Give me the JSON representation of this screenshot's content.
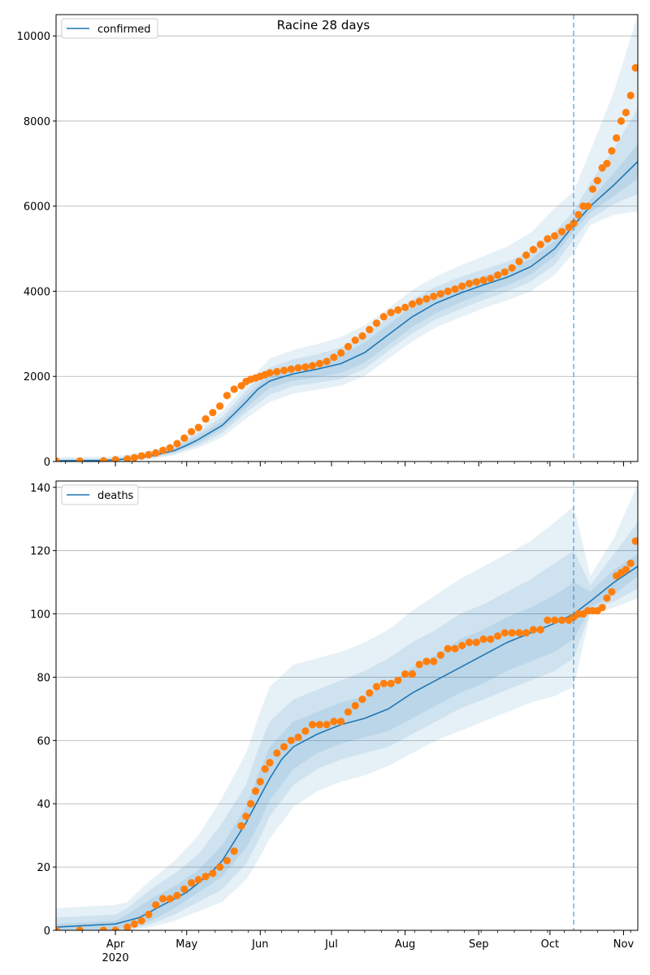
{
  "figure": {
    "title": "Racine 28 days"
  },
  "colors": {
    "line": "#1f77b4",
    "band": "#1f77b4",
    "points": "#ff7f0e",
    "grid": "#b0b0b0",
    "vline": "#1f77b4"
  },
  "chart_data": [
    {
      "type": "line",
      "name": "confirmed",
      "legend": "top-left",
      "grid": "horizontal",
      "xlim": [
        0,
        245
      ],
      "ylim": [
        0,
        10500
      ],
      "yticks": [
        0,
        2000,
        4000,
        6000,
        8000,
        10000
      ],
      "xticks": [
        {
          "x": 25,
          "label": "Apr",
          "sublabel": "2020"
        },
        {
          "x": 55,
          "label": "May"
        },
        {
          "x": 86,
          "label": "Jun"
        },
        {
          "x": 116,
          "label": "Jul"
        },
        {
          "x": 147,
          "label": "Aug"
        },
        {
          "x": 178,
          "label": "Sep"
        },
        {
          "x": 208,
          "label": "Oct"
        },
        {
          "x": 239,
          "label": "Nov"
        }
      ],
      "forecast_start_x": 218,
      "line": {
        "x": [
          0,
          20,
          30,
          40,
          50,
          55,
          60,
          70,
          75,
          80,
          85,
          90,
          95,
          100,
          110,
          120,
          130,
          140,
          150,
          160,
          170,
          180,
          190,
          200,
          210,
          218,
          225,
          235,
          245
        ],
        "y": [
          20,
          25,
          60,
          130,
          260,
          380,
          520,
          850,
          1120,
          1400,
          1700,
          1890,
          1980,
          2060,
          2170,
          2300,
          2560,
          2980,
          3400,
          3720,
          3950,
          4150,
          4330,
          4580,
          5000,
          5550,
          6000,
          6500,
          7050
        ]
      },
      "bands": [
        {
          "level": "inner",
          "x": [
            0,
            20,
            30,
            40,
            50,
            60,
            70,
            80,
            90,
            100,
            110,
            120,
            130,
            140,
            150,
            160,
            170,
            180,
            190,
            200,
            210,
            218,
            225,
            235,
            245
          ],
          "lower": [
            0,
            5,
            40,
            100,
            220,
            440,
            760,
            1260,
            1730,
            1900,
            1980,
            2080,
            2330,
            2740,
            3160,
            3490,
            3730,
            3950,
            4140,
            4400,
            4820,
            5420,
            5850,
            6240,
            6650
          ],
          "upper": [
            40,
            50,
            90,
            170,
            310,
            610,
            950,
            1540,
            2050,
            2230,
            2350,
            2510,
            2790,
            3220,
            3640,
            3950,
            4170,
            4350,
            4520,
            4760,
            5180,
            5680,
            6150,
            6780,
            7470
          ]
        },
        {
          "level": "middle",
          "x": [
            0,
            20,
            30,
            40,
            50,
            60,
            70,
            80,
            90,
            100,
            110,
            120,
            130,
            140,
            150,
            160,
            170,
            180,
            190,
            200,
            210,
            218,
            225,
            235,
            245
          ],
          "lower": [
            0,
            0,
            25,
            80,
            190,
            380,
            670,
            1150,
            1570,
            1770,
            1850,
            1940,
            2180,
            2600,
            3010,
            3340,
            3580,
            3800,
            3990,
            4230,
            4620,
            5220,
            5700,
            6050,
            6280
          ],
          "upper": [
            60,
            70,
            110,
            200,
            350,
            680,
            1050,
            1660,
            2210,
            2400,
            2520,
            2680,
            2970,
            3380,
            3800,
            4110,
            4330,
            4510,
            4690,
            4950,
            5400,
            5880,
            6550,
            7350,
            8300
          ]
        },
        {
          "level": "outer",
          "x": [
            0,
            20,
            30,
            40,
            50,
            60,
            70,
            80,
            90,
            100,
            110,
            120,
            130,
            140,
            150,
            160,
            170,
            180,
            190,
            200,
            210,
            218,
            225,
            235,
            245
          ],
          "lower": [
            0,
            0,
            10,
            50,
            150,
            320,
            570,
            1010,
            1400,
            1600,
            1690,
            1780,
            2010,
            2420,
            2820,
            3150,
            3380,
            3600,
            3790,
            4000,
            4390,
            4900,
            5560,
            5800,
            5880
          ],
          "upper": [
            100,
            110,
            160,
            260,
            420,
            780,
            1180,
            1820,
            2420,
            2620,
            2760,
            2920,
            3200,
            3600,
            4030,
            4350,
            4600,
            4820,
            5050,
            5380,
            5950,
            6350,
            7300,
            8700,
            10500
          ]
        }
      ],
      "points": {
        "x": [
          0,
          10,
          20,
          25,
          30,
          33,
          36,
          39,
          42,
          45,
          48,
          51,
          54,
          57,
          60,
          63,
          66,
          69,
          72,
          75,
          78,
          80,
          82,
          84,
          86,
          88,
          90,
          93,
          96,
          99,
          102,
          105,
          108,
          111,
          114,
          117,
          120,
          123,
          126,
          129,
          132,
          135,
          138,
          141,
          144,
          147,
          150,
          153,
          156,
          159,
          162,
          165,
          168,
          171,
          174,
          177,
          180,
          183,
          186,
          189,
          192,
          195,
          198,
          201,
          204,
          207,
          210,
          213,
          216,
          218,
          220,
          222,
          224,
          226,
          228,
          230,
          232,
          234,
          236,
          238,
          240,
          242,
          244
        ],
        "y": [
          10,
          10,
          15,
          40,
          60,
          90,
          130,
          160,
          200,
          260,
          320,
          420,
          550,
          700,
          800,
          1000,
          1150,
          1300,
          1550,
          1700,
          1780,
          1880,
          1930,
          1960,
          2000,
          2040,
          2080,
          2110,
          2140,
          2170,
          2200,
          2220,
          2250,
          2300,
          2350,
          2450,
          2550,
          2700,
          2850,
          2950,
          3100,
          3250,
          3400,
          3500,
          3560,
          3620,
          3700,
          3760,
          3820,
          3880,
          3940,
          4000,
          4050,
          4120,
          4180,
          4220,
          4260,
          4300,
          4380,
          4450,
          4550,
          4700,
          4850,
          4980,
          5100,
          5230,
          5300,
          5400,
          5500,
          5600,
          5800,
          6000,
          6000,
          6400,
          6600,
          6900,
          7000,
          7300,
          7600,
          8000,
          8200,
          8600,
          9250
        ]
      }
    },
    {
      "type": "line",
      "name": "deaths",
      "legend": "top-left",
      "grid": "horizontal",
      "xlim": [
        0,
        245
      ],
      "ylim": [
        0,
        142
      ],
      "yticks": [
        0,
        20,
        40,
        60,
        80,
        100,
        120,
        140
      ],
      "xticks": [
        {
          "x": 25,
          "label": "Apr",
          "sublabel": "2020"
        },
        {
          "x": 55,
          "label": "May"
        },
        {
          "x": 86,
          "label": "Jun"
        },
        {
          "x": 116,
          "label": "Jul"
        },
        {
          "x": 147,
          "label": "Aug"
        },
        {
          "x": 178,
          "label": "Sep"
        },
        {
          "x": 208,
          "label": "Oct"
        },
        {
          "x": 239,
          "label": "Nov"
        }
      ],
      "forecast_start_x": 218,
      "line": {
        "x": [
          0,
          25,
          30,
          35,
          40,
          45,
          50,
          55,
          60,
          65,
          70,
          75,
          80,
          85,
          90,
          95,
          100,
          110,
          120,
          130,
          140,
          150,
          160,
          170,
          180,
          190,
          200,
          210,
          218,
          225,
          235,
          245
        ],
        "y": [
          1,
          2,
          3,
          4,
          6,
          8,
          10,
          12,
          15,
          18,
          22,
          28,
          34,
          41,
          48,
          54,
          58,
          62,
          65,
          67,
          70,
          75,
          79,
          83,
          87,
          91,
          94,
          97,
          100,
          104,
          110,
          115
        ]
      },
      "bands": [
        {
          "level": "inner",
          "x": [
            0,
            25,
            30,
            40,
            50,
            60,
            70,
            80,
            85,
            90,
            100,
            110,
            120,
            130,
            140,
            150,
            160,
            170,
            180,
            190,
            200,
            210,
            218,
            225,
            235,
            245
          ],
          "lower": [
            0,
            0,
            1,
            3,
            7,
            12,
            17,
            26,
            33,
            41,
            51,
            56,
            59,
            61,
            63,
            67,
            71,
            75,
            78,
            82,
            85,
            88,
            92,
            102,
            106,
            112
          ],
          "upper": [
            2,
            3,
            5,
            10,
            14,
            19,
            27,
            39,
            49,
            58,
            66,
            69,
            72,
            74,
            78,
            83,
            87,
            92,
            95,
            99,
            102,
            106,
            110,
            107,
            114,
            119
          ]
        },
        {
          "level": "middle",
          "x": [
            0,
            25,
            30,
            40,
            50,
            60,
            70,
            80,
            85,
            90,
            100,
            110,
            120,
            130,
            140,
            150,
            160,
            170,
            180,
            190,
            200,
            210,
            218,
            225,
            235,
            245
          ],
          "lower": [
            0,
            0,
            0,
            2,
            5,
            9,
            13,
            21,
            28,
            36,
            46,
            51,
            54,
            56,
            58,
            62,
            66,
            70,
            73,
            76,
            79,
            82,
            86,
            101,
            104,
            108
          ],
          "upper": [
            4,
            5,
            7,
            13,
            18,
            24,
            34,
            46,
            57,
            66,
            73,
            76,
            79,
            82,
            86,
            91,
            95,
            100,
            103,
            107,
            111,
            116,
            120,
            109,
            119,
            129
          ]
        },
        {
          "level": "outer",
          "x": [
            0,
            25,
            30,
            40,
            50,
            60,
            70,
            80,
            85,
            90,
            100,
            110,
            120,
            130,
            140,
            150,
            160,
            170,
            180,
            190,
            200,
            210,
            218,
            225,
            235,
            245
          ],
          "lower": [
            0,
            0,
            0,
            1,
            3,
            6,
            9,
            16,
            22,
            29,
            39,
            44,
            47,
            49,
            52,
            56,
            60,
            63,
            66,
            69,
            72,
            74,
            77,
            100,
            102,
            105
          ],
          "upper": [
            7,
            8,
            9,
            16,
            22,
            30,
            42,
            56,
            67,
            77,
            84,
            86,
            88,
            91,
            95,
            101,
            106,
            111,
            115,
            119,
            123,
            129,
            134,
            112,
            124,
            141
          ]
        }
      ],
      "points": {
        "x": [
          0,
          10,
          20,
          25,
          30,
          33,
          36,
          39,
          42,
          45,
          48,
          51,
          54,
          57,
          60,
          63,
          66,
          69,
          72,
          75,
          78,
          80,
          82,
          84,
          86,
          88,
          90,
          93,
          96,
          99,
          102,
          105,
          108,
          111,
          114,
          117,
          120,
          123,
          126,
          129,
          132,
          135,
          138,
          141,
          144,
          147,
          150,
          153,
          156,
          159,
          162,
          165,
          168,
          171,
          174,
          177,
          180,
          183,
          186,
          189,
          192,
          195,
          198,
          201,
          204,
          207,
          210,
          213,
          216,
          218,
          220,
          222,
          224,
          226,
          228,
          230,
          232,
          234,
          236,
          238,
          240,
          242,
          244
        ],
        "y": [
          0,
          0,
          0,
          0,
          1,
          2,
          3,
          5,
          8,
          10,
          10,
          11,
          13,
          15,
          16,
          17,
          18,
          20,
          22,
          25,
          33,
          36,
          40,
          44,
          47,
          51,
          53,
          56,
          58,
          60,
          61,
          63,
          65,
          65,
          65,
          66,
          66,
          69,
          71,
          73,
          75,
          77,
          78,
          78,
          79,
          81,
          81,
          84,
          85,
          85,
          87,
          89,
          89,
          90,
          91,
          91,
          92,
          92,
          93,
          94,
          94,
          94,
          94,
          95,
          95,
          98,
          98,
          98,
          98,
          99,
          100,
          100,
          101,
          101,
          101,
          102,
          105,
          107,
          112,
          113,
          114,
          116,
          123
        ]
      }
    }
  ]
}
